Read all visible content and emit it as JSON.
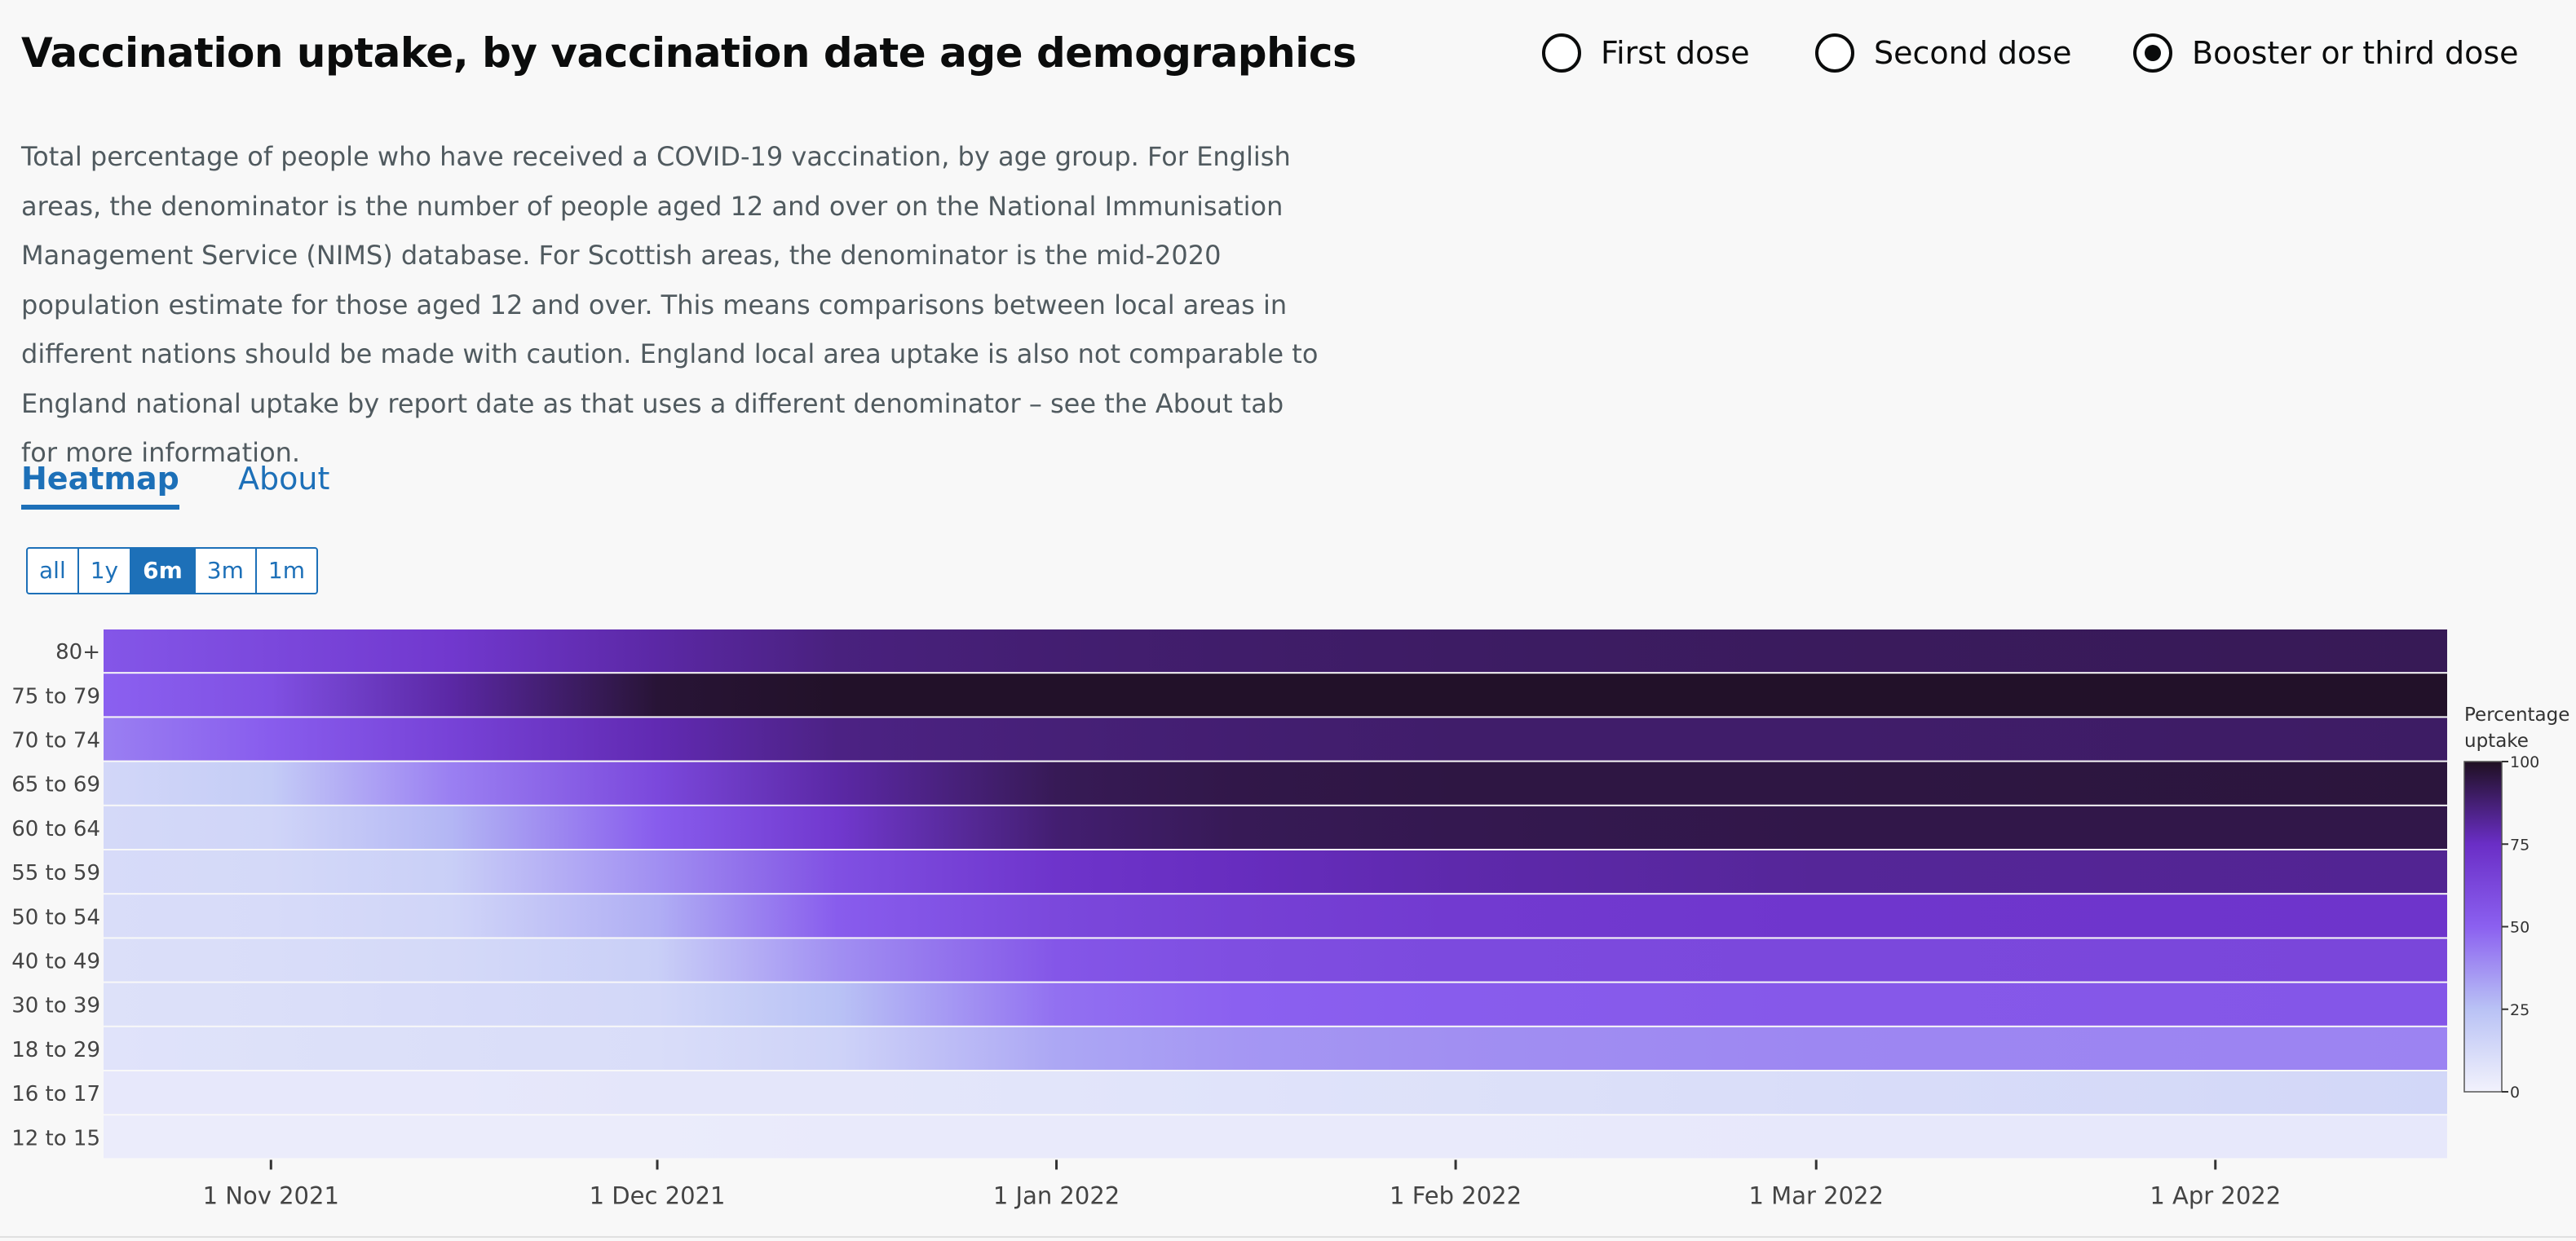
{
  "title": "Vaccination uptake, by vaccination date age demographics",
  "dose_options": [
    {
      "label": "First dose",
      "selected": false
    },
    {
      "label": "Second dose",
      "selected": false
    },
    {
      "label": "Booster or third dose",
      "selected": true
    }
  ],
  "description": "Total percentage of people who have received a COVID-19 vaccination, by age group. For English areas, the denominator is the number of people aged 12 and over on the National Immunisation Management Service (NIMS) database. For Scottish areas, the denominator is the mid-2020 population estimate for those aged 12 and over. This means comparisons between local areas in different nations should be made with caution. England local area uptake is also not comparable to England national uptake by report date as that uses a different denominator – see the About tab for more information.",
  "tabs": [
    {
      "label": "Heatmap",
      "active": true
    },
    {
      "label": "About",
      "active": false
    }
  ],
  "time_ranges": [
    {
      "label": "all",
      "active": false
    },
    {
      "label": "1y",
      "active": false
    },
    {
      "label": "6m",
      "active": true
    },
    {
      "label": "3m",
      "active": false
    },
    {
      "label": "1m",
      "active": false
    }
  ],
  "colors": {
    "accent": "#1d70b8",
    "scale": [
      "#f2f2fc",
      "#b9c2f5",
      "#8b60f0",
      "#6a2ec6",
      "#1f1022"
    ]
  },
  "chart_data": {
    "type": "heatmap",
    "x_range": [
      "2021-10-19",
      "2022-04-19"
    ],
    "x_ticks": [
      "1 Nov 2021",
      "1 Dec 2021",
      "1 Jan 2022",
      "1 Feb 2022",
      "1 Mar 2022",
      "1 Apr 2022"
    ],
    "x_tick_dates": [
      "2021-11-01",
      "2021-12-01",
      "2022-01-01",
      "2022-02-01",
      "2022-03-01",
      "2022-04-01"
    ],
    "sample_dates": [
      "2021-10-19",
      "2021-11-01",
      "2021-11-15",
      "2021-12-01",
      "2021-12-15",
      "2022-01-01",
      "2022-01-15",
      "2022-02-01",
      "2022-03-01",
      "2022-04-19"
    ],
    "rows": [
      {
        "name": "80+",
        "values": [
          55,
          62,
          70,
          80,
          86,
          88,
          89,
          90,
          91,
          92
        ]
      },
      {
        "name": "75 to 79",
        "values": [
          50,
          58,
          80,
          97,
          99,
          99,
          99,
          99,
          99,
          99
        ]
      },
      {
        "name": "70 to 74",
        "values": [
          42,
          52,
          65,
          78,
          85,
          87,
          88,
          89,
          89,
          90
        ]
      },
      {
        "name": "65 to 69",
        "values": [
          14,
          20,
          42,
          62,
          80,
          92,
          94,
          95,
          95,
          96
        ]
      },
      {
        "name": "60 to 64",
        "values": [
          13,
          15,
          28,
          52,
          70,
          88,
          92,
          93,
          94,
          94
        ]
      },
      {
        "name": "55 to 59",
        "values": [
          12,
          13,
          18,
          38,
          58,
          72,
          76,
          79,
          82,
          83
        ]
      },
      {
        "name": "50 to 54",
        "values": [
          11,
          12,
          15,
          30,
          52,
          62,
          66,
          69,
          71,
          72
        ]
      },
      {
        "name": "40 to 49",
        "values": [
          10,
          11,
          13,
          18,
          38,
          55,
          59,
          61,
          62,
          63
        ]
      },
      {
        "name": "30 to 39",
        "values": [
          9,
          10,
          12,
          14,
          25,
          46,
          50,
          52,
          54,
          55
        ]
      },
      {
        "name": "18 to 29",
        "values": [
          8,
          9,
          10,
          11,
          16,
          32,
          36,
          38,
          40,
          41
        ]
      },
      {
        "name": "16 to 17",
        "values": [
          5,
          5,
          5,
          6,
          6,
          7,
          8,
          9,
          11,
          14
        ]
      },
      {
        "name": "12 to 15",
        "values": [
          3,
          3,
          3,
          3,
          4,
          4,
          4,
          4,
          5,
          5
        ]
      }
    ],
    "colorbar": {
      "title_lines": [
        "Percentage",
        "uptake"
      ],
      "ticks": [
        0,
        25,
        50,
        75,
        100
      ],
      "range": [
        0,
        100
      ]
    }
  }
}
